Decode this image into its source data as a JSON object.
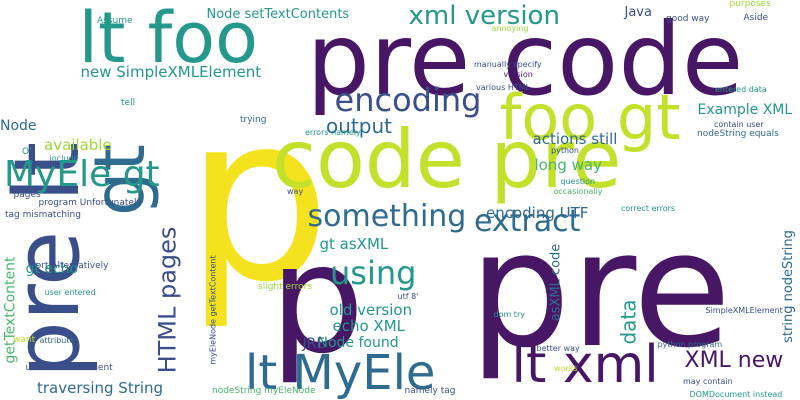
{
  "words": [
    {
      "text": "p",
      "color": "#f4e21e",
      "vertical": false
    },
    {
      "text": "pre",
      "color": "#471766",
      "vertical": false
    },
    {
      "text": "p",
      "color": "#471766",
      "vertical": false
    },
    {
      "text": "pre code",
      "color": "#471766",
      "vertical": false
    },
    {
      "text": "code pre",
      "color": "#c3e02a",
      "vertical": false
    },
    {
      "text": "lt foo",
      "color": "#23988b",
      "vertical": false
    },
    {
      "text": "pre lt",
      "color": "#3a4f8a",
      "vertical": true
    },
    {
      "text": "gt",
      "color": "#2f6b8e",
      "vertical": true
    },
    {
      "text": "foo gt",
      "color": "#c3e02a",
      "vertical": false
    },
    {
      "text": "lt MyEle",
      "color": "#2f6b8e",
      "vertical": false
    },
    {
      "text": "lt xml",
      "color": "#471766",
      "vertical": false
    },
    {
      "text": "MyEle gt",
      "color": "#23988b",
      "vertical": false
    },
    {
      "text": "encoding",
      "color": "#3a4f8a",
      "vertical": false
    },
    {
      "text": "something",
      "color": "#2f6b8e",
      "vertical": false
    },
    {
      "text": "xml version",
      "color": "#23988b",
      "vertical": false
    },
    {
      "text": "using",
      "color": "#23988b",
      "vertical": false
    },
    {
      "text": "extract",
      "color": "#2f6b8e",
      "vertical": false
    },
    {
      "text": "output",
      "color": "#2f6b8e",
      "vertical": false
    },
    {
      "text": "HTML pages",
      "color": "#3a4f8a",
      "vertical": true
    },
    {
      "text": "XML new",
      "color": "#471766",
      "vertical": false
    },
    {
      "text": "data",
      "color": "#23988b",
      "vertical": true
    },
    {
      "text": "new SimpleXMLElement",
      "color": "#23988b",
      "vertical": false
    },
    {
      "text": "Node setTextContents",
      "color": "#23988b",
      "vertical": false
    },
    {
      "text": "actions still",
      "color": "#2f6b8e",
      "vertical": false
    },
    {
      "text": "long way",
      "color": "#48b66d",
      "vertical": false
    },
    {
      "text": "Example XML",
      "color": "#23988b",
      "vertical": false
    },
    {
      "text": "encoding UTF",
      "color": "#2f6b8e",
      "vertical": false
    },
    {
      "text": "gt asXML",
      "color": "#23988b",
      "vertical": false
    },
    {
      "text": "old version",
      "color": "#23988b",
      "vertical": false
    },
    {
      "text": "echo XML",
      "color": "#23988b",
      "vertical": false
    },
    {
      "text": "gt echo",
      "color": "#23988b",
      "vertical": false
    },
    {
      "text": "traversing String",
      "color": "#2f6b8e",
      "vertical": false
    },
    {
      "text": "Node found",
      "color": "#23988b",
      "vertical": false
    },
    {
      "text": "JRE",
      "color": "#3a4f8a",
      "vertical": false
    },
    {
      "text": "available",
      "color": "#9fd937",
      "vertical": false
    },
    {
      "text": "getTextContent",
      "color": "#48b66d",
      "vertical": true
    },
    {
      "text": "asXML code",
      "color": "#2f6b8e",
      "vertical": true
    },
    {
      "text": "string nodeString",
      "color": "#2f6b8e",
      "vertical": true
    },
    {
      "text": "Node",
      "color": "#2f6b8e",
      "vertical": false
    },
    {
      "text": "Java",
      "color": "#3a4f8a",
      "vertical": false
    },
    {
      "text": "program Unfortunately",
      "color": "#3a4f8a",
      "vertical": false
    },
    {
      "text": "good way",
      "color": "#3a4f8a",
      "vertical": false
    },
    {
      "text": "purposes",
      "color": "#9fd937",
      "vertical": false
    },
    {
      "text": "Aside",
      "color": "#3a4f8a",
      "vertical": false
    },
    {
      "text": "Assume",
      "color": "#23988b",
      "vertical": false
    },
    {
      "text": "annoying",
      "color": "#9fd937",
      "vertical": false
    },
    {
      "text": "manually specify",
      "color": "#3a4f8a",
      "vertical": false
    },
    {
      "text": "version",
      "color": "#471766",
      "vertical": false
    },
    {
      "text": "various HTML",
      "color": "#3a4f8a",
      "vertical": false
    },
    {
      "text": "entered data",
      "color": "#23988b",
      "vertical": false
    },
    {
      "text": "contain user",
      "color": "#3a4f8a",
      "vertical": false
    },
    {
      "text": "nodeString equals",
      "color": "#2f6b8e",
      "vertical": false
    },
    {
      "text": "trying",
      "color": "#2f6b8e",
      "vertical": false
    },
    {
      "text": "tell",
      "color": "#23988b",
      "vertical": false
    },
    {
      "text": "errors namely",
      "color": "#23988b",
      "vertical": false
    },
    {
      "text": "python",
      "color": "#3a4f8a",
      "vertical": false
    },
    {
      "text": "O'",
      "color": "#23988b",
      "vertical": false
    },
    {
      "text": "include",
      "color": "#23988b",
      "vertical": false
    },
    {
      "text": "question",
      "color": "#23988b",
      "vertical": false
    },
    {
      "text": "occasionally",
      "color": "#48b66d",
      "vertical": false
    },
    {
      "text": "pages",
      "color": "#3a4f8a",
      "vertical": false
    },
    {
      "text": "way",
      "color": "#3a4f8a",
      "vertical": false
    },
    {
      "text": "correct errors",
      "color": "#23988b",
      "vertical": false
    },
    {
      "text": "tag mismatching",
      "color": "#3a4f8a",
      "vertical": false
    },
    {
      "text": "sort Alternatively",
      "color": "#3a4f8a",
      "vertical": false
    },
    {
      "text": "user entered",
      "color": "#23988b",
      "vertical": false
    },
    {
      "text": "slight errors",
      "color": "#9fd937",
      "vertical": false
    },
    {
      "text": "utf 8'",
      "color": "#3a4f8a",
      "vertical": false
    },
    {
      "text": "want",
      "color": "#c3e02a",
      "vertical": false
    },
    {
      "text": "attribute",
      "color": "#2f6b8e",
      "vertical": false
    },
    {
      "text": "use DOMDocument",
      "color": "#3a4f8a",
      "vertical": false
    },
    {
      "text": "myEleNode getTextContent",
      "color": "#3a4f8a",
      "vertical": true
    },
    {
      "text": "nodeString myEleNode",
      "color": "#48b66d",
      "vertical": false
    },
    {
      "text": "namely tag",
      "color": "#3a4f8a",
      "vertical": false
    },
    {
      "text": "better way",
      "color": "#3a4f8a",
      "vertical": false
    },
    {
      "text": "works",
      "color": "#c3e02a",
      "vertical": false
    },
    {
      "text": "dom try",
      "color": "#23988b",
      "vertical": false
    },
    {
      "text": "python program",
      "color": "#2f6b8e",
      "vertical": false
    },
    {
      "text": "may contain",
      "color": "#3a4f8a",
      "vertical": false
    },
    {
      "text": "DOMDocument instead",
      "color": "#23988b",
      "vertical": false
    },
    {
      "text": "SimpleXMLElement",
      "color": "#3a4f8a",
      "vertical": false
    }
  ]
}
